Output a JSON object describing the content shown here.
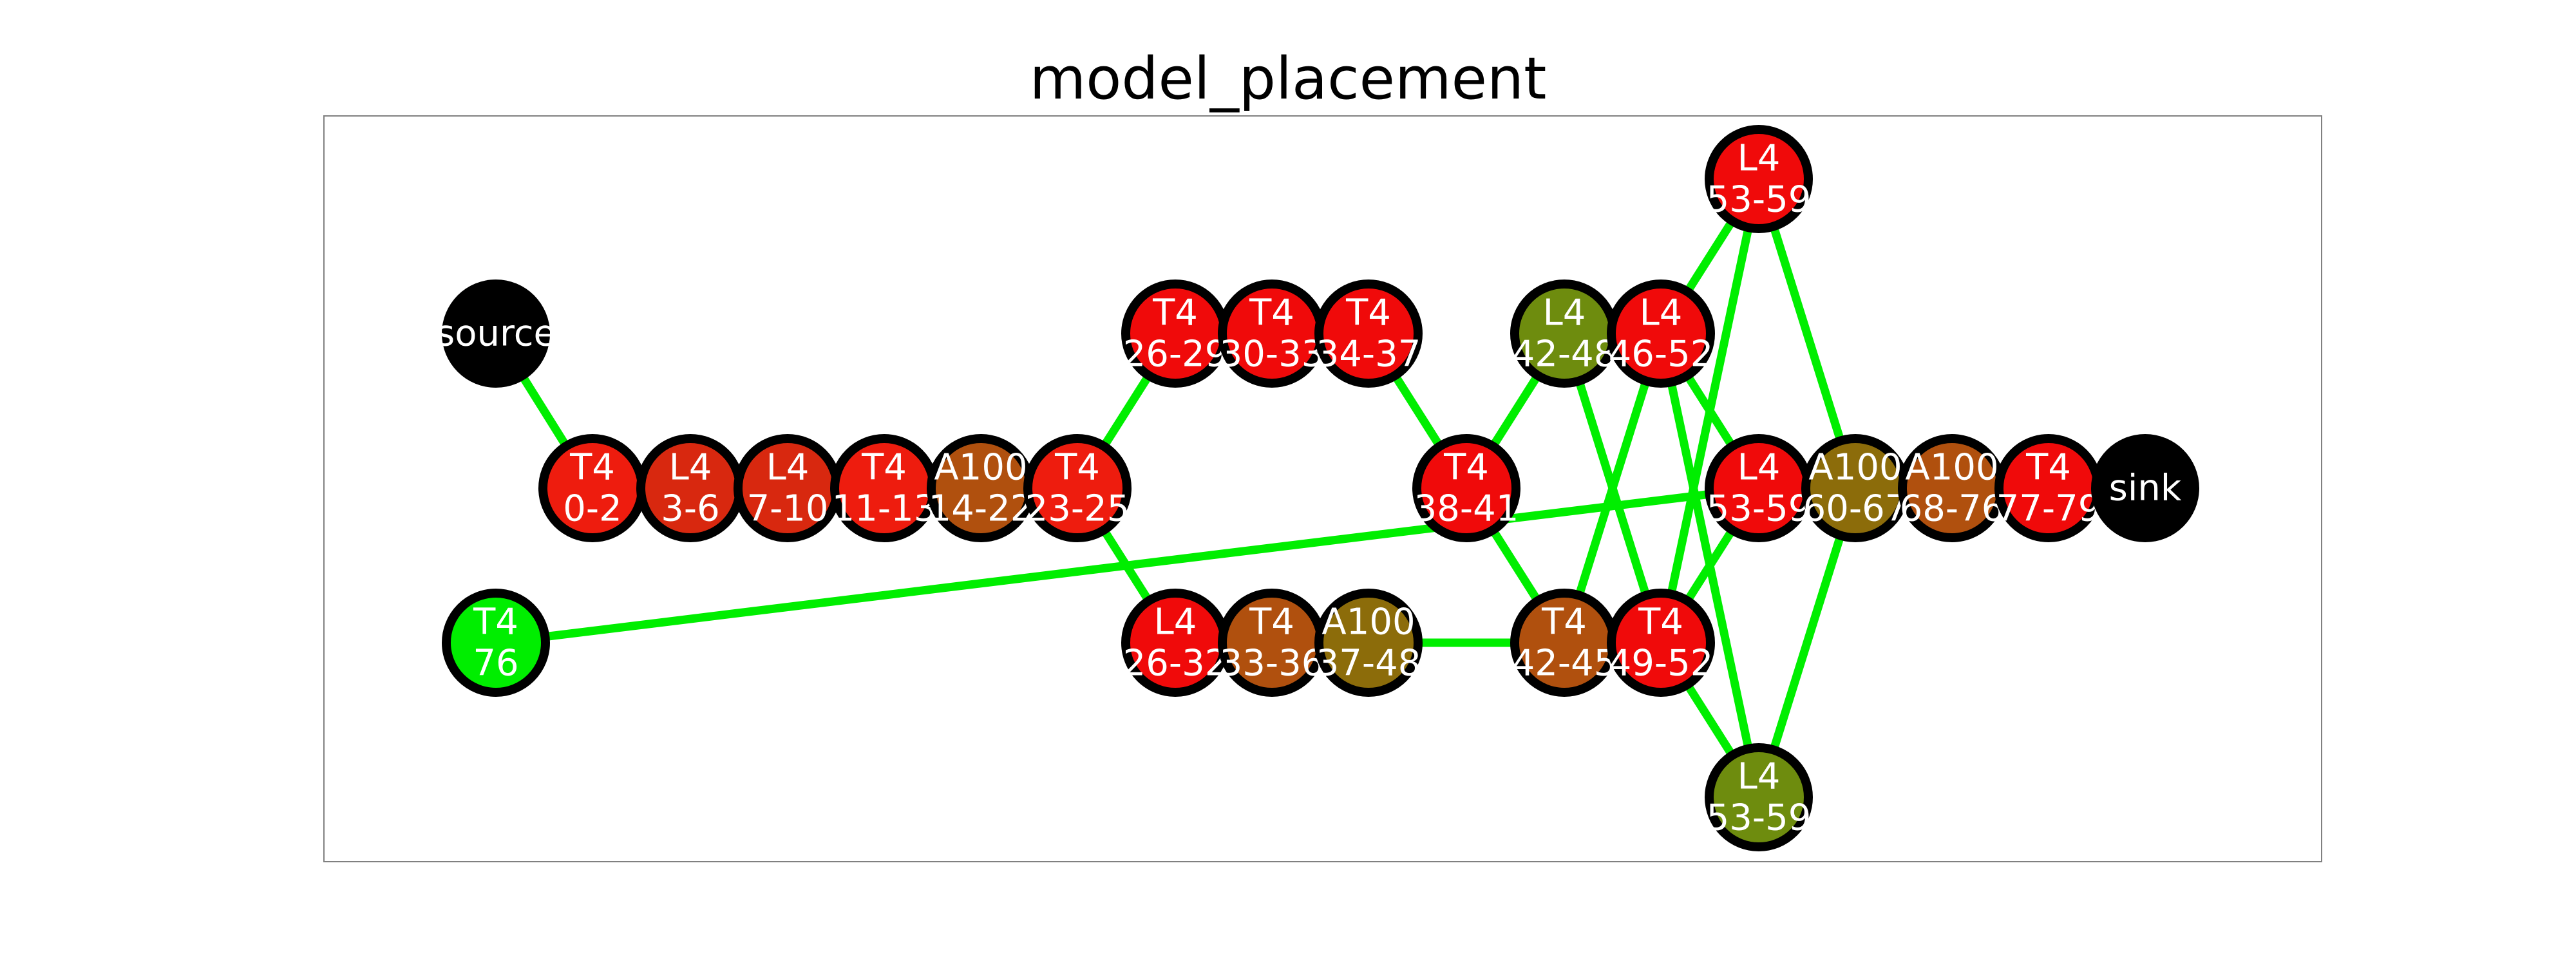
{
  "title": "model_placement",
  "colors": {
    "edge": "#00ee00",
    "border": "#000000",
    "label": "#ffffff",
    "frame": "#808080"
  },
  "nodes": [
    {
      "id": "source",
      "lines": [
        "source"
      ],
      "fill": "#000000",
      "border": false
    },
    {
      "id": "t4_0_2",
      "lines": [
        "T4",
        "0-2"
      ],
      "fill": "#ee1c0e"
    },
    {
      "id": "l4_3_6",
      "lines": [
        "L4",
        "3-6"
      ],
      "fill": "#d8280f"
    },
    {
      "id": "l4_7_10",
      "lines": [
        "L4",
        "7-10"
      ],
      "fill": "#d8280f"
    },
    {
      "id": "t4_11_13",
      "lines": [
        "T4",
        "11-13"
      ],
      "fill": "#ee1c0e"
    },
    {
      "id": "a100_14_22",
      "lines": [
        "A100",
        "14-22"
      ],
      "fill": "#b0500e"
    },
    {
      "id": "t4_23_25",
      "lines": [
        "T4",
        "23-25"
      ],
      "fill": "#ee1c0e"
    },
    {
      "id": "t4_26_29",
      "lines": [
        "T4",
        "26-29"
      ],
      "fill": "#f00a0a"
    },
    {
      "id": "t4_30_33",
      "lines": [
        "T4",
        "30-33"
      ],
      "fill": "#f00a0a"
    },
    {
      "id": "t4_34_37",
      "lines": [
        "T4",
        "34-37"
      ],
      "fill": "#f00a0a"
    },
    {
      "id": "l4_26_32",
      "lines": [
        "L4",
        "26-32"
      ],
      "fill": "#f00a0a"
    },
    {
      "id": "t4_33_36",
      "lines": [
        "T4",
        "33-36"
      ],
      "fill": "#b0500e"
    },
    {
      "id": "a100_37_48",
      "lines": [
        "A100",
        "37-48"
      ],
      "fill": "#8c6c0a"
    },
    {
      "id": "t4_76",
      "lines": [
        "T4",
        "76"
      ],
      "fill": "#00ee00"
    },
    {
      "id": "t4_38_41",
      "lines": [
        "T4",
        "38-41"
      ],
      "fill": "#f00a0a"
    },
    {
      "id": "l4_42_48",
      "lines": [
        "L4",
        "42-48"
      ],
      "fill": "#6e8c0e"
    },
    {
      "id": "l4_46_52",
      "lines": [
        "L4",
        "46-52"
      ],
      "fill": "#f00a0a"
    },
    {
      "id": "t4_42_45",
      "lines": [
        "T4",
        "42-45"
      ],
      "fill": "#b0500e"
    },
    {
      "id": "t4_49_52",
      "lines": [
        "T4",
        "49-52"
      ],
      "fill": "#f00a0a"
    },
    {
      "id": "l4_53_59_top",
      "lines": [
        "L4",
        "53-59"
      ],
      "fill": "#f00a0a"
    },
    {
      "id": "l4_53_59_mid",
      "lines": [
        "L4",
        "53-59"
      ],
      "fill": "#f00a0a"
    },
    {
      "id": "l4_53_59_bot",
      "lines": [
        "L4",
        "53-59"
      ],
      "fill": "#6e8c0e"
    },
    {
      "id": "a100_60_67",
      "lines": [
        "A100",
        "60-67"
      ],
      "fill": "#8c6c0a"
    },
    {
      "id": "a100_68_76",
      "lines": [
        "A100",
        "68-76"
      ],
      "fill": "#b0500e"
    },
    {
      "id": "t4_77_79",
      "lines": [
        "T4",
        "77-79"
      ],
      "fill": "#f00a0a"
    },
    {
      "id": "sink",
      "lines": [
        "sink"
      ],
      "fill": "#000000",
      "border": false
    }
  ],
  "edges": [
    [
      "source",
      "t4_0_2"
    ],
    [
      "t4_0_2",
      "l4_3_6"
    ],
    [
      "l4_3_6",
      "l4_7_10"
    ],
    [
      "l4_7_10",
      "t4_11_13"
    ],
    [
      "t4_11_13",
      "a100_14_22"
    ],
    [
      "a100_14_22",
      "t4_23_25"
    ],
    [
      "t4_23_25",
      "t4_26_29"
    ],
    [
      "t4_26_29",
      "t4_30_33"
    ],
    [
      "t4_30_33",
      "t4_34_37"
    ],
    [
      "t4_34_37",
      "t4_38_41"
    ],
    [
      "t4_23_25",
      "l4_26_32"
    ],
    [
      "l4_26_32",
      "t4_33_36"
    ],
    [
      "t4_33_36",
      "a100_37_48"
    ],
    [
      "a100_37_48",
      "t4_42_45"
    ],
    [
      "t4_38_41",
      "l4_42_48"
    ],
    [
      "t4_38_41",
      "t4_42_45"
    ],
    [
      "l4_42_48",
      "l4_46_52"
    ],
    [
      "l4_42_48",
      "t4_49_52"
    ],
    [
      "t4_42_45",
      "t4_49_52"
    ],
    [
      "t4_42_45",
      "l4_46_52"
    ],
    [
      "l4_46_52",
      "l4_53_59_top"
    ],
    [
      "l4_46_52",
      "l4_53_59_mid"
    ],
    [
      "l4_46_52",
      "l4_53_59_bot"
    ],
    [
      "t4_49_52",
      "l4_53_59_top"
    ],
    [
      "t4_49_52",
      "l4_53_59_mid"
    ],
    [
      "t4_49_52",
      "l4_53_59_bot"
    ],
    [
      "l4_53_59_top",
      "a100_60_67"
    ],
    [
      "l4_53_59_mid",
      "a100_60_67"
    ],
    [
      "l4_53_59_bot",
      "a100_60_67"
    ],
    [
      "a100_60_67",
      "a100_68_76"
    ],
    [
      "a100_68_76",
      "t4_77_79"
    ],
    [
      "t4_77_79",
      "sink"
    ],
    [
      "t4_76",
      "l4_53_59_mid"
    ]
  ]
}
